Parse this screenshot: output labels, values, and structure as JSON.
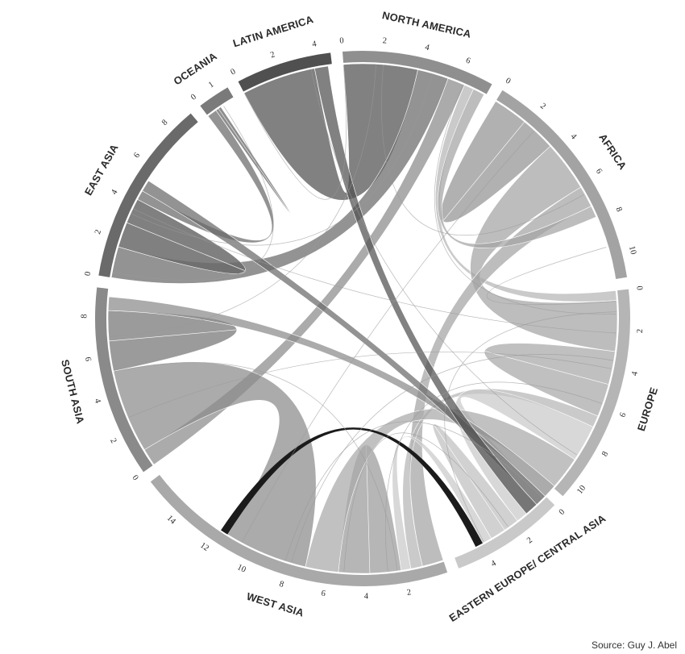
{
  "source": "Source: Guy J. Abel",
  "colors": {
    "background": "#ffffff",
    "text": "#2a2a2a",
    "highlight_flow": "#1b1b1b"
  },
  "chart_data": {
    "type": "chord",
    "unit_note": "",
    "regions": [
      {
        "name": "NORTH AMERICA",
        "total": 7.5,
        "ticks": [
          0,
          2,
          4,
          6
        ],
        "color": "#8f8f8f"
      },
      {
        "name": "AFRICA",
        "total": 11.2,
        "ticks": [
          0,
          2,
          4,
          6,
          8,
          10
        ],
        "color": "#a3a3a3"
      },
      {
        "name": "EUROPE",
        "total": 10.8,
        "ticks": [
          0,
          2,
          4,
          6,
          8,
          10
        ],
        "color": "#b5b5b5"
      },
      {
        "name": "EASTERN EUROPE/ CENTRAL ASIA",
        "total": 5.6,
        "ticks": [
          0,
          2,
          4
        ],
        "color": "#c9c9c9"
      },
      {
        "name": "WEST ASIA",
        "total": 16.0,
        "ticks": [
          2,
          4,
          6,
          8,
          10,
          12,
          14
        ],
        "color": "#a9a9a9"
      },
      {
        "name": "SOUTH ASIA",
        "total": 9.4,
        "ticks": [
          0,
          2,
          4,
          6,
          8
        ],
        "color": "#8a8a8a"
      },
      {
        "name": "EAST ASIA",
        "total": 9.2,
        "ticks": [
          0,
          2,
          4,
          6,
          8
        ],
        "color": "#6a6a6a"
      },
      {
        "name": "OCEANIA",
        "total": 1.6,
        "ticks": [
          0,
          1
        ],
        "color": "#7a7a7a"
      },
      {
        "name": "LATIN AMERICA",
        "total": 4.7,
        "ticks": [
          0,
          2,
          4
        ],
        "color": "#505050"
      }
    ],
    "flows": [
      {
        "from": "LATIN AMERICA",
        "to": "NORTH AMERICA",
        "value": 3.8
      },
      {
        "from": "EAST ASIA",
        "to": "NORTH AMERICA",
        "value": 1.6
      },
      {
        "from": "SOUTH ASIA",
        "to": "NORTH AMERICA",
        "value": 0.9
      },
      {
        "from": "EUROPE",
        "to": "NORTH AMERICA",
        "value": 0.5
      },
      {
        "from": "AFRICA",
        "to": "AFRICA",
        "value": 3.6
      },
      {
        "from": "AFRICA",
        "to": "EUROPE",
        "value": 2.6
      },
      {
        "from": "AFRICA",
        "to": "WEST ASIA",
        "value": 1.1
      },
      {
        "from": "AFRICA",
        "to": "NORTH AMERICA",
        "value": 0.6
      },
      {
        "from": "EUROPE",
        "to": "EUROPE",
        "value": 3.4
      },
      {
        "from": "EUROPE",
        "to": "WEST ASIA",
        "value": 0.6
      },
      {
        "from": "EASTERN EUROPE/ CENTRAL ASIA",
        "to": "EUROPE",
        "value": 1.9
      },
      {
        "from": "EASTERN EUROPE/ CENTRAL ASIA",
        "to": "EASTERN EUROPE/ CENTRAL ASIA",
        "value": 1.6
      },
      {
        "from": "EASTERN EUROPE/ CENTRAL ASIA",
        "to": "WEST ASIA",
        "value": 0.5
      },
      {
        "from": "WEST ASIA",
        "to": "WEST ASIA",
        "value": 3.2
      },
      {
        "from": "WEST ASIA",
        "to": "EUROPE",
        "value": 1.7
      },
      {
        "from": "SOUTH ASIA",
        "to": "WEST ASIA",
        "value": 4.3
      },
      {
        "from": "SOUTH ASIA",
        "to": "SOUTH ASIA",
        "value": 3.1
      },
      {
        "from": "SOUTH ASIA",
        "to": "EUROPE",
        "value": 0.7
      },
      {
        "from": "EAST ASIA",
        "to": "EAST ASIA",
        "value": 2.6
      },
      {
        "from": "EAST ASIA",
        "to": "OCEANIA",
        "value": 0.5
      },
      {
        "from": "EAST ASIA",
        "to": "EUROPE",
        "value": 0.6
      },
      {
        "from": "LATIN AMERICA",
        "to": "EUROPE",
        "value": 0.7
      },
      {
        "from": "OCEANIA",
        "to": "OCEANIA",
        "value": 0.3
      },
      {
        "from": "WEST ASIA",
        "to": "EASTERN EUROPE/ CENTRAL ASIA",
        "value": 0.4,
        "highlight": true
      }
    ],
    "legend": "none",
    "grid": false
  }
}
